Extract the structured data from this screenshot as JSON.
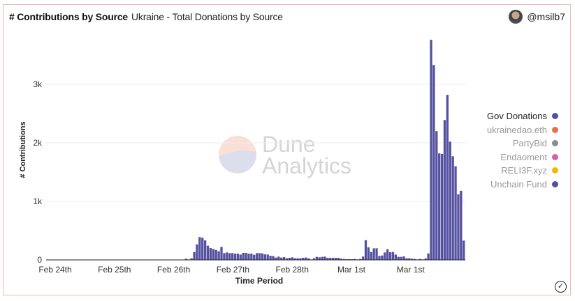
{
  "header": {
    "title": "# Contributions by Source",
    "subtitle": "Ukraine - Total Donations by Source",
    "username": "@msilb7"
  },
  "watermark": "Dune Analytics",
  "legend": [
    {
      "label": "Gov Donations",
      "color": "#5551a0"
    },
    {
      "label": "ukrainedao.eth",
      "color": "#f26b45"
    },
    {
      "label": "PartyBid",
      "color": "#8c8c8c"
    },
    {
      "label": "Endaoment",
      "color": "#d35fb0"
    },
    {
      "label": "RELI3F.xyz",
      "color": "#f2b705"
    },
    {
      "label": "Unchain Fund",
      "color": "#5551a0"
    }
  ],
  "chart_data": {
    "type": "bar",
    "title": "# Contributions by Source",
    "xlabel": "Time Period",
    "ylabel": "# Contributions",
    "ylim": [
      0,
      3900
    ],
    "y_ticks": [
      {
        "value": 0,
        "label": "0"
      },
      {
        "value": 1000,
        "label": "1k"
      },
      {
        "value": 2000,
        "label": "2k"
      },
      {
        "value": 3000,
        "label": "3k"
      }
    ],
    "x_tick_labels": [
      "Feb 24th",
      "Feb 25th",
      "Feb 26th",
      "Feb 27th",
      "Feb 28th",
      "Mar 1st",
      "Mar 1st"
    ],
    "grid": true,
    "legend_position": "right",
    "series": [
      {
        "name": "Gov Donations",
        "color": "#5551a0",
        "values": [
          0,
          0,
          0,
          0,
          0,
          0,
          0,
          0,
          0,
          0,
          0,
          0,
          0,
          0,
          0,
          0,
          0,
          0,
          0,
          0,
          0,
          0,
          0,
          0,
          0,
          0,
          0,
          0,
          0,
          0,
          0,
          0,
          0,
          0,
          0,
          0,
          0,
          0,
          0,
          0,
          0,
          0,
          0,
          0,
          0,
          0,
          0,
          0,
          0,
          0,
          0,
          20,
          8,
          28,
          135,
          265,
          390,
          378,
          333,
          242,
          202,
          187,
          170,
          147,
          222,
          115,
          127,
          115,
          115,
          107,
          107,
          91,
          119,
          119,
          107,
          107,
          87,
          115,
          115,
          111,
          95,
          91,
          71,
          67,
          40,
          56,
          40,
          48,
          28,
          36,
          44,
          28,
          28,
          28,
          36,
          40,
          28,
          8,
          28,
          52,
          44,
          52,
          56,
          36,
          36,
          36,
          36,
          36,
          20,
          16,
          12,
          12,
          12,
          16,
          8,
          16,
          56,
          337,
          214,
          135,
          198,
          198,
          67,
          75,
          127,
          182,
          131,
          135,
          91,
          52,
          52,
          60,
          28,
          28,
          20,
          16,
          8,
          16,
          8,
          24,
          110,
          3760,
          3330,
          2200,
          1820,
          1810,
          2390,
          2820,
          2020,
          1770,
          1600,
          1120,
          1180,
          330
        ]
      }
    ]
  }
}
